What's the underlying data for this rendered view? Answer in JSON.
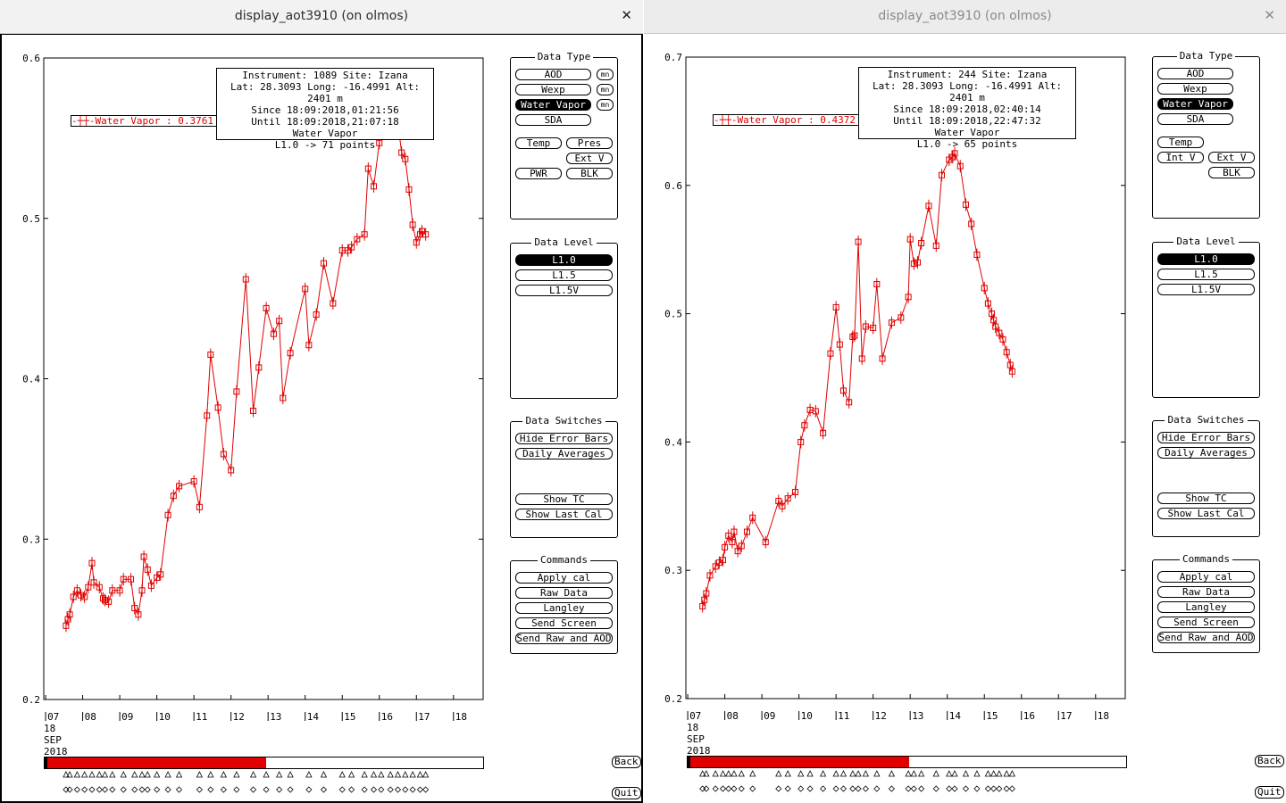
{
  "windows": [
    {
      "title": "display_aot3910 (on olmos)",
      "info": {
        "line1": "Instrument: 1089 Site: Izana",
        "line2": "Lat: 28.3093 Long: -16.4991 Alt: 2401 m",
        "line3": "Since 18:09:2018,01:21:56",
        "line4": "Until 18:09:2018,21:07:18",
        "line5": "Water Vapor",
        "line6": "L1.0 -> 71 points"
      },
      "legend": "Water Vapor : 0.3761 ±",
      "date_label": [
        "18",
        "SEP",
        "2018"
      ],
      "panel": {
        "data_type": {
          "title": "Data Type",
          "aod": "AOD",
          "wexp": "Wexp",
          "water_vapor": "Water Vapor",
          "sda": "SDA",
          "mn": "mn",
          "temp": "Temp",
          "pres": "Pres",
          "ext_v": "Ext V",
          "pwr": "PWR",
          "blk": "BLK"
        },
        "data_level": {
          "title": "Data Level",
          "l10": "L1.0",
          "l15": "L1.5",
          "l15v": "L1.5V"
        },
        "data_switches": {
          "title": "Data Switches",
          "hide_error_bars": "Hide Error Bars",
          "daily_averages": "Daily Averages",
          "show_tc": "Show TC",
          "show_last_cal": "Show Last Cal"
        },
        "commands": {
          "title": "Commands",
          "apply_cal": "Apply cal",
          "raw_data": "Raw Data",
          "langley": "Langley",
          "send_screen": "Send Screen",
          "send_raw_aod": "Send Raw and AOD"
        }
      },
      "back": "Back",
      "quit": "Quit",
      "time_bar_fill": 0.505,
      "chart_data": {
        "type": "line",
        "title": "",
        "xlabel": "",
        "ylabel": "",
        "xlim": [
          6.95,
          18.8
        ],
        "ylim": [
          0.2,
          0.6
        ],
        "yticks": [
          0.2,
          0.3,
          0.4,
          0.5,
          0.6
        ],
        "ytick_labels": [
          "0.2",
          "0.3",
          "0.4",
          "0.5",
          "0.6"
        ],
        "xticks": [
          7,
          8,
          9,
          10,
          11,
          12,
          13,
          14,
          15,
          16,
          17,
          18
        ],
        "xtick_labels": [
          "07",
          "08",
          "09",
          "10",
          "11",
          "12",
          "13",
          "14",
          "15",
          "16",
          "17",
          "18"
        ],
        "grid": false,
        "color": "#e00000",
        "series": [
          {
            "name": "Water Vapor",
            "x": [
              7.55,
              7.6,
              7.65,
              7.75,
              7.85,
              7.95,
              8.05,
              8.15,
              8.25,
              8.3,
              8.45,
              8.55,
              8.6,
              8.7,
              8.8,
              9.0,
              9.1,
              9.3,
              9.4,
              9.5,
              9.6,
              9.65,
              9.75,
              9.85,
              10.0,
              10.1,
              10.3,
              10.45,
              10.6,
              11.0,
              11.15,
              11.35,
              11.45,
              11.65,
              11.8,
              12.0,
              12.15,
              12.4,
              12.6,
              12.75,
              12.95,
              13.15,
              13.3,
              13.4,
              13.6,
              14.0,
              14.1,
              14.3,
              14.5,
              14.75,
              15.0,
              15.15,
              15.25,
              15.4,
              15.6,
              15.7,
              15.85,
              16.0,
              16.05,
              16.15,
              16.3,
              16.35,
              16.5,
              16.6,
              16.7,
              16.8,
              16.9,
              17.0,
              17.1,
              17.15,
              17.25
            ],
            "y": [
              0.246,
              0.25,
              0.253,
              0.264,
              0.268,
              0.265,
              0.264,
              0.27,
              0.285,
              0.273,
              0.27,
              0.263,
              0.262,
              0.261,
              0.268,
              0.268,
              0.275,
              0.275,
              0.257,
              0.253,
              0.268,
              0.289,
              0.281,
              0.271,
              0.276,
              0.278,
              0.315,
              0.327,
              0.333,
              0.336,
              0.32,
              0.377,
              0.415,
              0.382,
              0.353,
              0.343,
              0.392,
              0.462,
              0.38,
              0.407,
              0.444,
              0.428,
              0.436,
              0.388,
              0.416,
              0.456,
              0.421,
              0.44,
              0.472,
              0.447,
              0.48,
              0.48,
              0.482,
              0.487,
              0.49,
              0.531,
              0.52,
              0.547,
              0.578,
              0.58,
              0.577,
              0.56,
              0.56,
              0.541,
              0.537,
              0.518,
              0.496,
              0.485,
              0.49,
              0.492,
              0.49
            ]
          }
        ]
      }
    },
    {
      "title": "display_aot3910 (on olmos)",
      "info": {
        "line1": "Instrument: 244 Site: Izana",
        "line2": "Lat: 28.3093 Long: -16.4991 Alt: 2401 m",
        "line3": "Since 18:09:2018,02:40:14",
        "line4": "Until 18:09:2018,22:47:32",
        "line5": "Water Vapor",
        "line6": "L1.0 -> 65 points"
      },
      "legend": "Water Vapor : 0.4372 ±",
      "date_label": [
        "18",
        "SEP",
        "2018"
      ],
      "panel": {
        "data_type": {
          "title": "Data Type",
          "aod": "AOD",
          "wexp": "Wexp",
          "water_vapor": "Water Vapor",
          "sda": "SDA",
          "temp": "Temp",
          "int_v": "Int V",
          "ext_v": "Ext V",
          "blk": "BLK"
        },
        "data_level": {
          "title": "Data Level",
          "l10": "L1.0",
          "l15": "L1.5",
          "l15v": "L1.5V"
        },
        "data_switches": {
          "title": "Data Switches",
          "hide_error_bars": "Hide Error Bars",
          "daily_averages": "Daily Averages",
          "show_tc": "Show TC",
          "show_last_cal": "Show Last Cal"
        },
        "commands": {
          "title": "Commands",
          "apply_cal": "Apply cal",
          "raw_data": "Raw Data",
          "langley": "Langley",
          "send_screen": "Send Screen",
          "send_raw_aod": "Send Raw and AOD"
        }
      },
      "back": "Back",
      "quit": "Quit",
      "time_bar_fill": 0.505,
      "chart_data": {
        "type": "line",
        "title": "",
        "xlabel": "",
        "ylabel": "",
        "xlim": [
          6.95,
          18.8
        ],
        "ylim": [
          0.2,
          0.7
        ],
        "yticks": [
          0.2,
          0.3,
          0.4,
          0.5,
          0.6,
          0.7
        ],
        "ytick_labels": [
          "0.2",
          "0.3",
          "0.4",
          "0.5",
          "0.6",
          "0.7"
        ],
        "xticks": [
          7,
          8,
          9,
          10,
          11,
          12,
          13,
          14,
          15,
          16,
          17,
          18
        ],
        "xtick_labels": [
          "07",
          "08",
          "09",
          "10",
          "11",
          "12",
          "13",
          "14",
          "15",
          "16",
          "17",
          "18"
        ],
        "grid": false,
        "color": "#e00000",
        "series": [
          {
            "name": "Water Vapor",
            "x": [
              7.4,
              7.45,
              7.5,
              7.6,
              7.75,
              7.85,
              7.95,
              8.0,
              8.1,
              8.2,
              8.25,
              8.35,
              8.45,
              8.6,
              8.75,
              9.1,
              9.45,
              9.55,
              9.7,
              9.9,
              10.05,
              10.15,
              10.3,
              10.45,
              10.65,
              10.85,
              11.0,
              11.1,
              11.2,
              11.35,
              11.45,
              11.5,
              11.6,
              11.7,
              11.8,
              12.0,
              12.1,
              12.25,
              12.5,
              12.75,
              12.95,
              13.0,
              13.1,
              13.2,
              13.3,
              13.5,
              13.7,
              13.85,
              14.05,
              14.15,
              14.2,
              14.35,
              14.5,
              14.65,
              14.8,
              15.0,
              15.1,
              15.2,
              15.25,
              15.3,
              15.4,
              15.5,
              15.6,
              15.7,
              15.75
            ],
            "y": [
              0.272,
              0.277,
              0.282,
              0.296,
              0.303,
              0.306,
              0.308,
              0.318,
              0.327,
              0.322,
              0.33,
              0.315,
              0.319,
              0.33,
              0.341,
              0.322,
              0.354,
              0.35,
              0.356,
              0.361,
              0.4,
              0.413,
              0.425,
              0.424,
              0.407,
              0.469,
              0.505,
              0.476,
              0.44,
              0.431,
              0.482,
              0.483,
              0.556,
              0.465,
              0.49,
              0.489,
              0.523,
              0.465,
              0.493,
              0.497,
              0.513,
              0.558,
              0.539,
              0.54,
              0.555,
              0.584,
              0.553,
              0.608,
              0.62,
              0.622,
              0.625,
              0.615,
              0.585,
              0.57,
              0.546,
              0.52,
              0.508,
              0.5,
              0.495,
              0.49,
              0.485,
              0.48,
              0.47,
              0.46,
              0.455
            ]
          }
        ]
      }
    }
  ]
}
